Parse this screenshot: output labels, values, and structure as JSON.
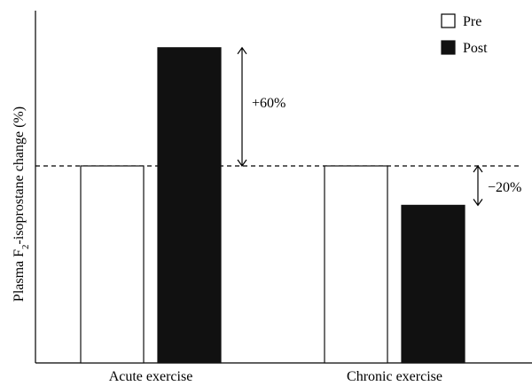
{
  "chart_data": {
    "type": "bar",
    "categories": [
      "Acute exercise",
      "Chronic exercise"
    ],
    "series": [
      {
        "name": "Pre",
        "values": [
          100,
          100
        ],
        "fill": "#ffffff",
        "stroke": "#111111"
      },
      {
        "name": "Post",
        "values": [
          160,
          80
        ],
        "fill": "#111111",
        "stroke": "#111111"
      }
    ],
    "ylabel_main": "Plasma F",
    "ylabel_sub": "2",
    "ylabel_rest": "-isoprostane change (%)",
    "ylim": [
      0,
      185
    ],
    "grid": false,
    "legend_position": "top-right",
    "reference_line": {
      "value": 100,
      "style": "dashed"
    },
    "annotations": [
      {
        "label": "+60%",
        "category": "Acute exercise",
        "from": 100,
        "to": 160
      },
      {
        "label": "−20%",
        "category": "Chronic exercise",
        "from": 80,
        "to": 100
      }
    ]
  },
  "colors": {
    "axis": "#000000",
    "post_fill": "#111111",
    "pre_fill": "#ffffff"
  }
}
